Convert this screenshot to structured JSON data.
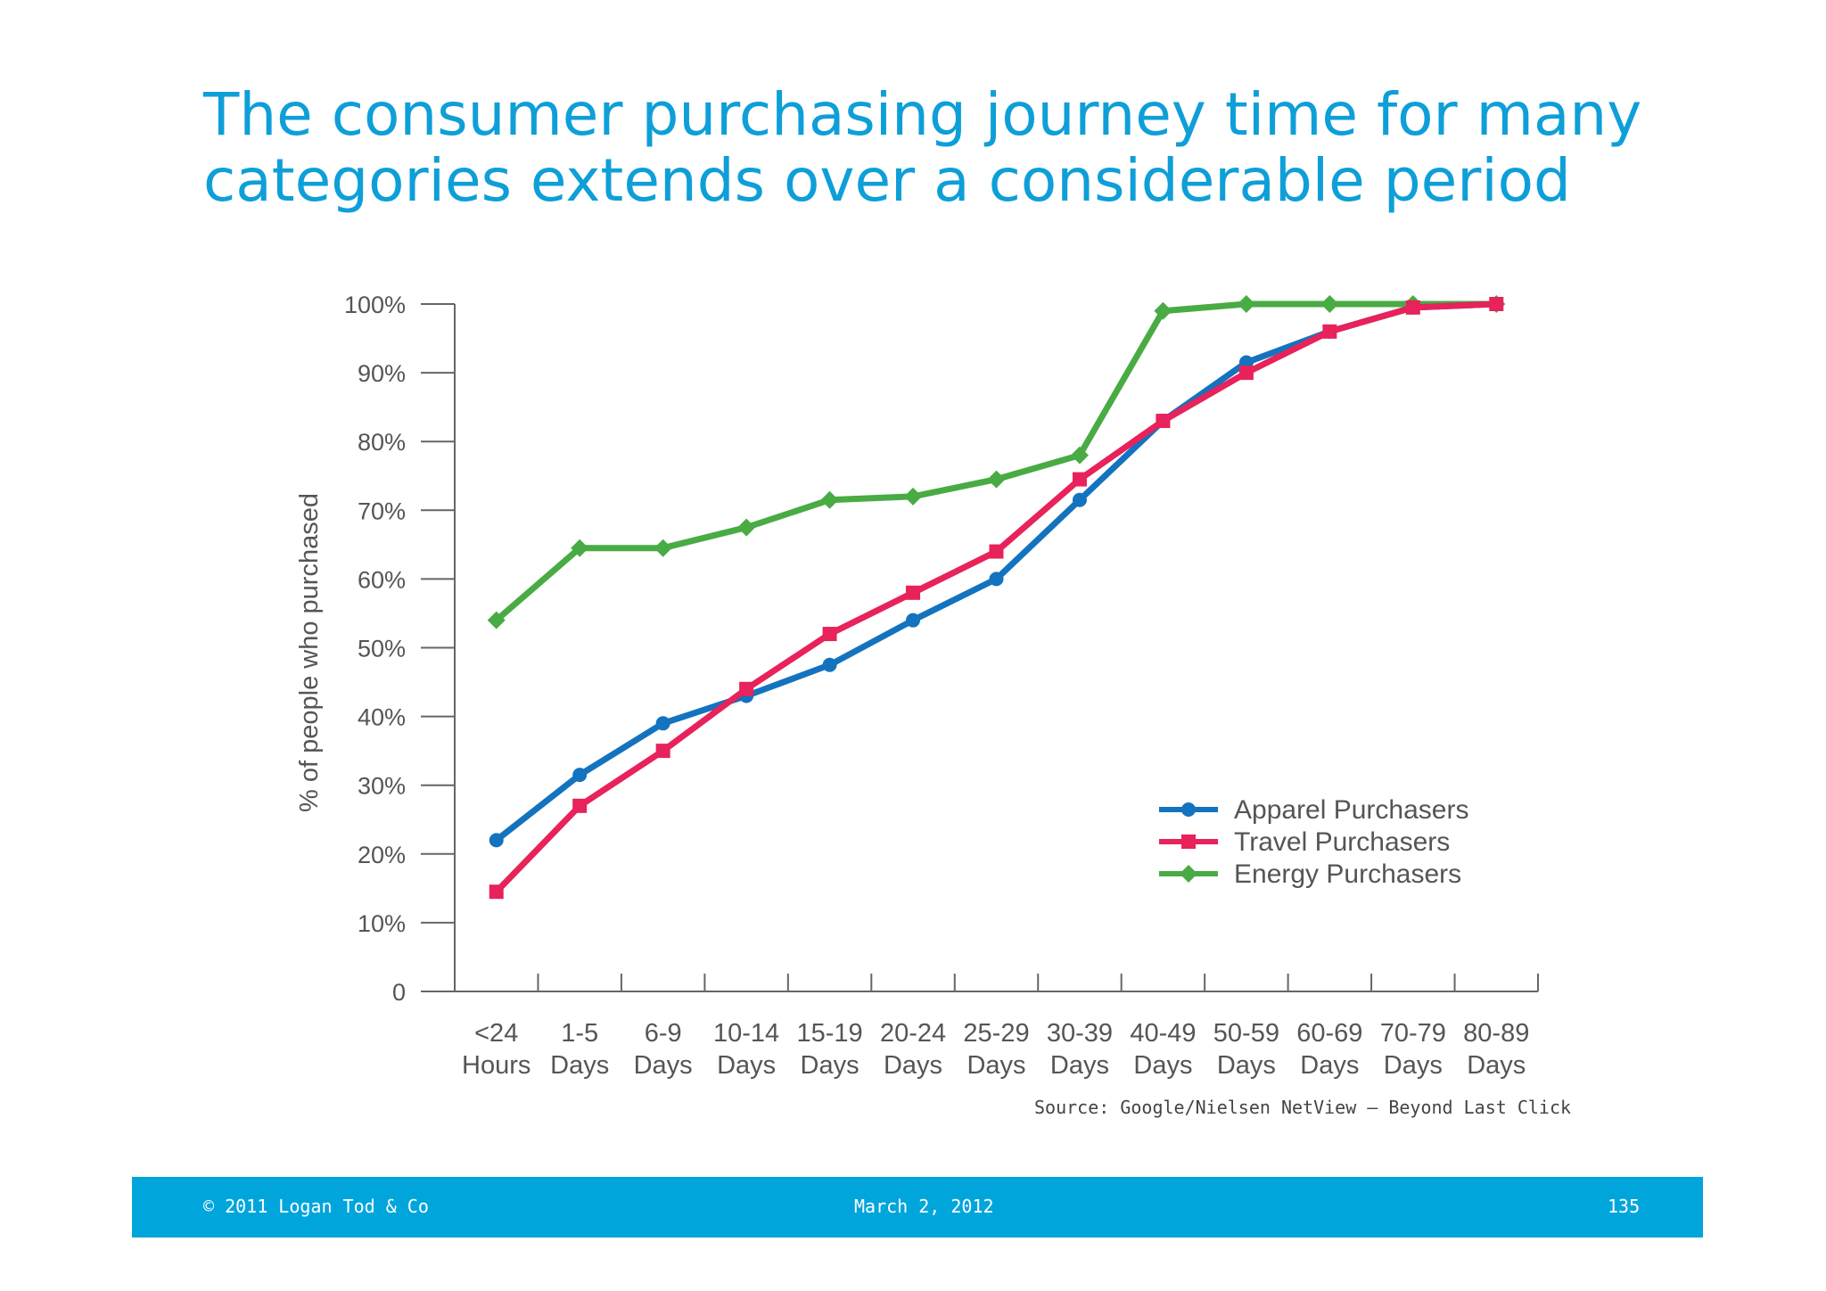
{
  "slide": {
    "title_line1": "The consumer purchasing journey time for many",
    "title_line2": "categories extends over a considerable period"
  },
  "chart_data": {
    "type": "line",
    "title": "",
    "xlabel": "",
    "ylabel": "% of people who purchased",
    "ylim": [
      0,
      100
    ],
    "yticks": [
      "0",
      "10%",
      "20%",
      "30%",
      "40%",
      "50%",
      "60%",
      "70%",
      "80%",
      "90%",
      "100%"
    ],
    "categories": [
      [
        "<24",
        "Hours"
      ],
      [
        "1-5",
        "Days"
      ],
      [
        "6-9",
        "Days"
      ],
      [
        "10-14",
        "Days"
      ],
      [
        "15-19",
        "Days"
      ],
      [
        "20-24",
        "Days"
      ],
      [
        "25-29",
        "Days"
      ],
      [
        "30-39",
        "Days"
      ],
      [
        "40-49",
        "Days"
      ],
      [
        "50-59",
        "Days"
      ],
      [
        "60-69",
        "Days"
      ],
      [
        "70-79",
        "Days"
      ],
      [
        "80-89",
        "Days"
      ]
    ],
    "legend_position": "right",
    "grid": false,
    "series": [
      {
        "name": "Apparel Purchasers",
        "color": "#1473be",
        "marker": "circle",
        "values": [
          22,
          31.5,
          39,
          43,
          47.5,
          54,
          60,
          71.5,
          83,
          91.5,
          96,
          99.5,
          100
        ]
      },
      {
        "name": "Travel Purchasers",
        "color": "#e8225a",
        "marker": "square",
        "values": [
          14.5,
          27,
          35,
          44,
          52,
          58,
          64,
          74.5,
          83,
          90,
          96,
          99.5,
          100
        ]
      },
      {
        "name": "Energy Purchasers",
        "color": "#49ab43",
        "marker": "diamond",
        "values": [
          54,
          64.5,
          64.5,
          67.5,
          71.5,
          72,
          74.5,
          78,
          99,
          100,
          100,
          100,
          100
        ]
      }
    ]
  },
  "source_note": "Source: Google/Nielsen NetView – Beyond Last Click",
  "footer": {
    "copyright": "© 2011 Logan Tod & Co",
    "date": "March 2, 2012",
    "page_number": "135"
  }
}
